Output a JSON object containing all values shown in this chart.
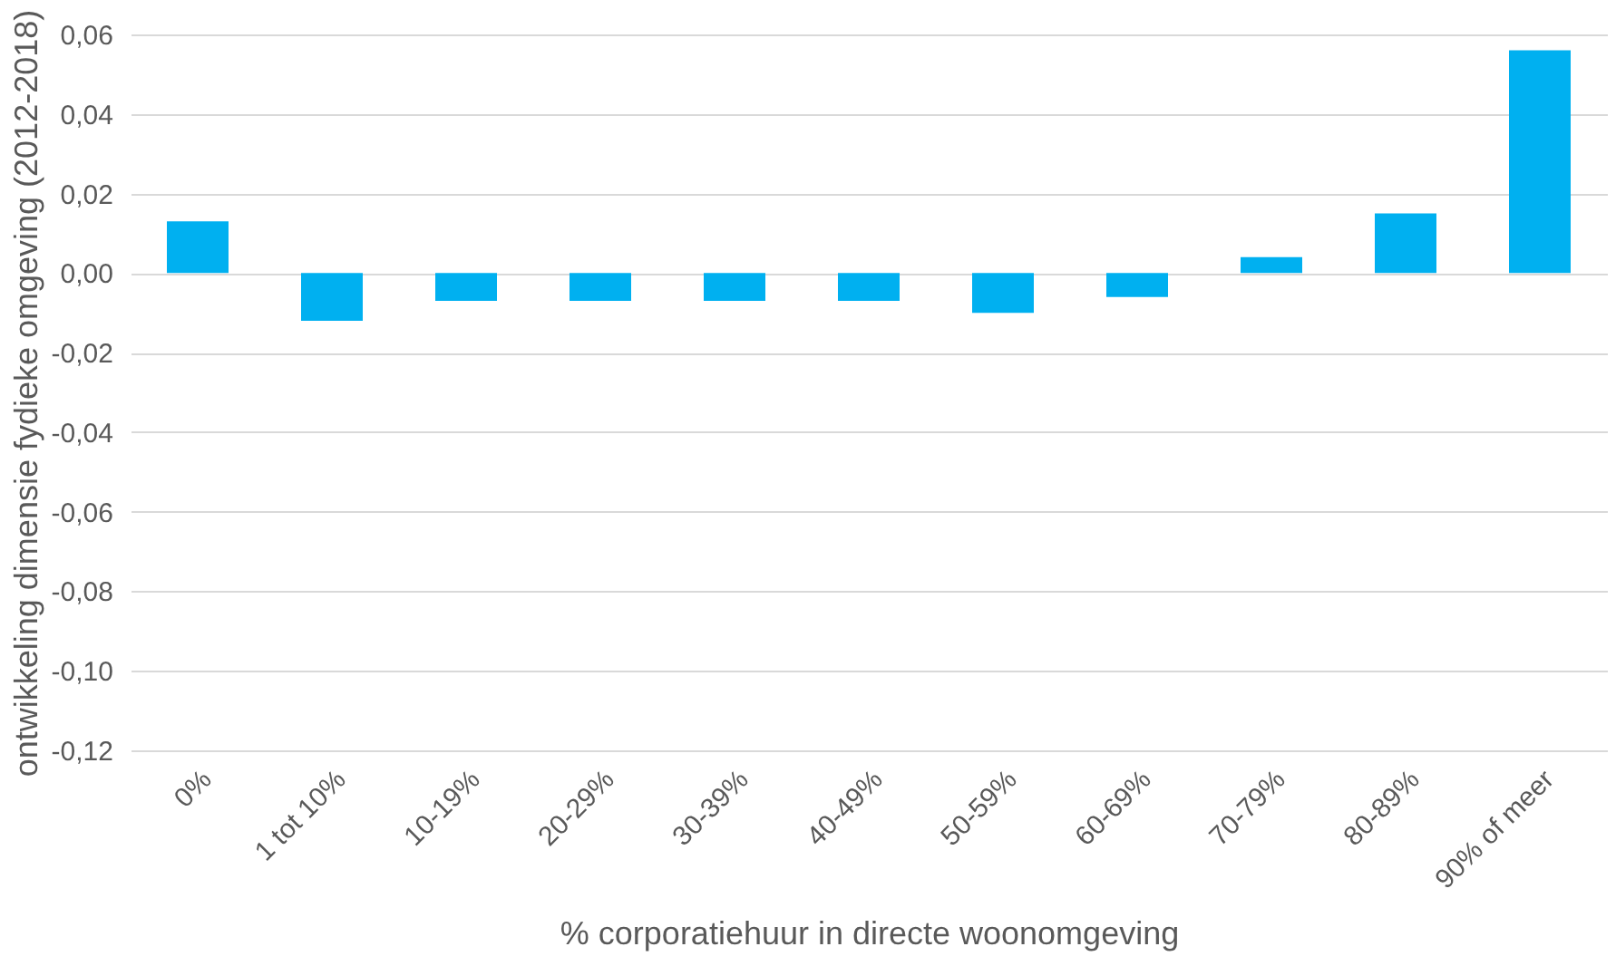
{
  "chart_data": {
    "type": "bar",
    "xlabel": "% corporatiehuur in directe woonomgeving",
    "ylabel": "ontwikkeling dimensie fydieke omgeving (2012-2018)",
    "categories": [
      "0%",
      "1 tot 10%",
      "10-19%",
      "20-29%",
      "30-39%",
      "40-49%",
      "50-59%",
      "60-69%",
      "70-79%",
      "80-89%",
      "90% of meer"
    ],
    "values": [
      0.013,
      -0.012,
      -0.007,
      -0.007,
      -0.007,
      -0.007,
      -0.01,
      -0.006,
      0.004,
      0.015,
      0.056
    ],
    "color": "#00b0f0",
    "ylim": [
      -0.12,
      0.06
    ],
    "yticks": [
      {
        "value": -0.12,
        "label": "-0,12"
      },
      {
        "value": -0.1,
        "label": "-0,10"
      },
      {
        "value": -0.08,
        "label": "-0,08"
      },
      {
        "value": -0.06,
        "label": "-0,06"
      },
      {
        "value": -0.04,
        "label": "-0,04"
      },
      {
        "value": -0.02,
        "label": "-0,02"
      },
      {
        "value": 0,
        "label": "0,00"
      },
      {
        "value": 0.02,
        "label": "0,02"
      },
      {
        "value": 0.04,
        "label": "0,04"
      },
      {
        "value": 0.06,
        "label": "0,06"
      }
    ],
    "grid": "y"
  }
}
